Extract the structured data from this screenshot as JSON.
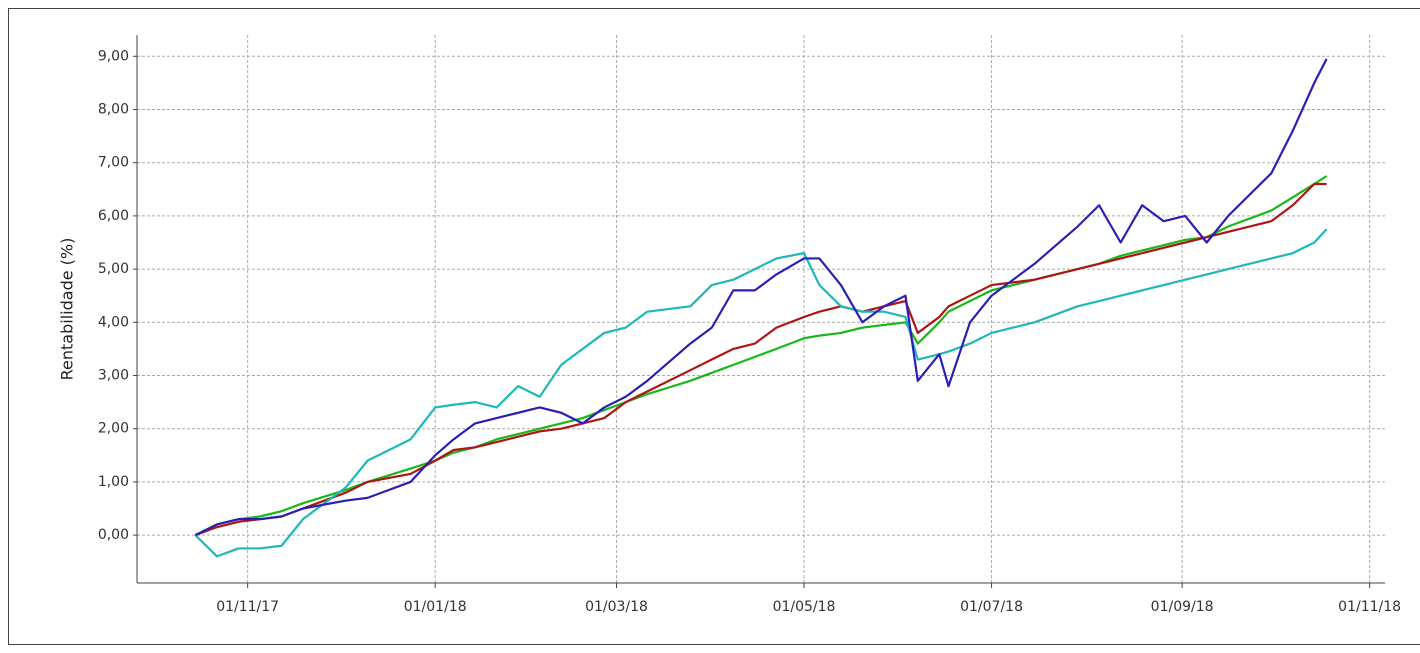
{
  "chart_data": {
    "type": "line",
    "y_label": "Rentabilidade (%)",
    "x": [
      "2017-10-15",
      "2017-10-22",
      "2017-10-29",
      "2017-11-05",
      "2017-11-12",
      "2017-11-19",
      "2017-12-03",
      "2017-12-10",
      "2017-12-24",
      "2018-01-01",
      "2018-01-07",
      "2018-01-14",
      "2018-01-21",
      "2018-01-28",
      "2018-02-04",
      "2018-02-11",
      "2018-02-18",
      "2018-02-25",
      "2018-03-04",
      "2018-03-11",
      "2018-03-25",
      "2018-04-01",
      "2018-04-08",
      "2018-04-15",
      "2018-04-22",
      "2018-05-01",
      "2018-05-06",
      "2018-05-13",
      "2018-05-20",
      "2018-05-27",
      "2018-06-03",
      "2018-06-07",
      "2018-06-14",
      "2018-06-17",
      "2018-06-24",
      "2018-07-01",
      "2018-07-15",
      "2018-07-29",
      "2018-08-05",
      "2018-08-12",
      "2018-08-19",
      "2018-08-26",
      "2018-09-02",
      "2018-09-09",
      "2018-09-16",
      "2018-09-30",
      "2018-10-07",
      "2018-10-14",
      "2018-10-18"
    ],
    "series": [
      {
        "color": "#18b818",
        "values": [
          0,
          0.2,
          0.3,
          0.35,
          0.45,
          0.6,
          0.85,
          1.0,
          1.25,
          1.4,
          1.55,
          1.65,
          1.8,
          1.9,
          2.0,
          2.1,
          2.2,
          2.35,
          2.5,
          2.65,
          2.9,
          3.05,
          3.2,
          3.35,
          3.5,
          3.7,
          3.75,
          3.8,
          3.9,
          3.95,
          4.0,
          3.6,
          4.0,
          4.2,
          4.4,
          4.6,
          4.8,
          5.0,
          5.1,
          5.25,
          5.35,
          5.45,
          5.55,
          5.6,
          5.8,
          6.1,
          6.35,
          6.6,
          6.75
        ]
      },
      {
        "color": "#b01515",
        "values": [
          0,
          0.15,
          0.25,
          0.3,
          0.35,
          0.5,
          0.8,
          1.0,
          1.15,
          1.4,
          1.6,
          1.65,
          1.75,
          1.85,
          1.95,
          2.0,
          2.1,
          2.2,
          2.5,
          2.7,
          3.1,
          3.3,
          3.5,
          3.6,
          3.9,
          4.1,
          4.2,
          4.3,
          4.2,
          4.3,
          4.4,
          3.8,
          4.1,
          4.3,
          4.5,
          4.7,
          4.8,
          5.0,
          5.1,
          5.2,
          5.3,
          5.4,
          5.5,
          5.6,
          5.7,
          5.9,
          6.2,
          6.6,
          6.6
        ]
      },
      {
        "color": "#1fb8b8",
        "values": [
          0,
          -0.4,
          -0.25,
          -0.25,
          -0.2,
          0.3,
          0.9,
          1.4,
          1.8,
          2.4,
          2.45,
          2.5,
          2.4,
          2.8,
          2.6,
          3.2,
          3.5,
          3.8,
          3.9,
          4.2,
          4.3,
          4.7,
          4.8,
          5.0,
          5.2,
          5.3,
          4.7,
          4.3,
          4.2,
          4.2,
          4.1,
          3.3,
          3.4,
          3.45,
          3.6,
          3.8,
          4.0,
          4.3,
          4.4,
          4.5,
          4.6,
          4.7,
          4.8,
          4.9,
          5.0,
          5.2,
          5.3,
          5.5,
          5.75
        ]
      },
      {
        "color": "#2a1fb4",
        "values": [
          0,
          0.2,
          0.3,
          0.3,
          0.35,
          0.5,
          0.65,
          0.7,
          1.0,
          1.5,
          1.8,
          2.1,
          2.2,
          2.3,
          2.4,
          2.3,
          2.1,
          2.4,
          2.6,
          2.9,
          3.6,
          3.9,
          4.6,
          4.6,
          4.9,
          5.2,
          5.2,
          4.7,
          4.0,
          4.3,
          4.5,
          2.9,
          3.4,
          2.8,
          4.0,
          4.5,
          5.1,
          5.8,
          6.2,
          5.5,
          6.2,
          5.9,
          6.0,
          5.5,
          6.0,
          6.8,
          7.6,
          8.5,
          8.95
        ]
      }
    ],
    "xlim": [
      "2017-09-26",
      "2018-11-06"
    ],
    "xticks": [
      {
        "value": "2017-11-01",
        "label": "01/11/17"
      },
      {
        "value": "2018-01-01",
        "label": "01/01/18"
      },
      {
        "value": "2018-03-01",
        "label": "01/03/18"
      },
      {
        "value": "2018-05-01",
        "label": "01/05/18"
      },
      {
        "value": "2018-07-01",
        "label": "01/07/18"
      },
      {
        "value": "2018-09-01",
        "label": "01/09/18"
      },
      {
        "value": "2018-11-01",
        "label": "01/11/18"
      }
    ],
    "ylim": [
      -0.9,
      9.4
    ],
    "yticks": [
      {
        "value": 0,
        "label": "0,00"
      },
      {
        "value": 1,
        "label": "1,00"
      },
      {
        "value": 2,
        "label": "2,00"
      },
      {
        "value": 3,
        "label": "3,00"
      },
      {
        "value": 4,
        "label": "4,00"
      },
      {
        "value": 5,
        "label": "5,00"
      },
      {
        "value": 6,
        "label": "6,00"
      },
      {
        "value": 7,
        "label": "7,00"
      },
      {
        "value": 8,
        "label": "8,00"
      },
      {
        "value": 9,
        "label": "9,00"
      }
    ],
    "grid": true
  }
}
